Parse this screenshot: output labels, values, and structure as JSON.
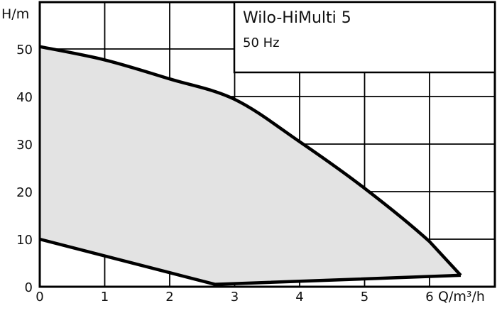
{
  "chart_data": {
    "type": "area",
    "title": "Wilo-HiMulti 5",
    "subtitle": "50 Hz",
    "xlabel": "Q/m³/h",
    "ylabel": "H/m",
    "xlim": [
      0,
      7
    ],
    "ylim": [
      0,
      60
    ],
    "x_ticks": [
      0,
      1,
      2,
      3,
      4,
      5,
      6
    ],
    "y_ticks": [
      0,
      10,
      20,
      30,
      40,
      50
    ],
    "grid": true,
    "fill_color": "#e3e3e3",
    "line_color": "#000000",
    "series": [
      {
        "role": "upper",
        "x": [
          0,
          1,
          2,
          3,
          4,
          5,
          6,
          6.48
        ],
        "y": [
          50.5,
          47.7,
          43.7,
          39.4,
          30.5,
          20.7,
          9.5,
          2.4
        ]
      },
      {
        "role": "lower",
        "x": [
          0,
          2.7,
          6.48
        ],
        "y": [
          10,
          0.5,
          2.4
        ]
      }
    ]
  }
}
